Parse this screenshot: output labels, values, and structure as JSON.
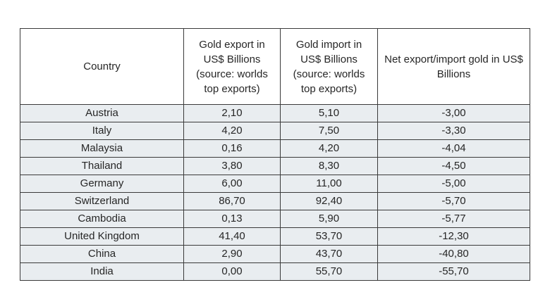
{
  "table": {
    "headers": [
      "Country",
      "Gold export in US$ Billions (source: worlds top exports)",
      "Gold import in US$ Billions (source: worlds top exports)",
      "Net export/import gold in US$ Billions"
    ],
    "rows": [
      {
        "country": "Austria",
        "export": "2,10",
        "import": "5,10",
        "net": "-3,00"
      },
      {
        "country": "Italy",
        "export": "4,20",
        "import": "7,50",
        "net": "-3,30"
      },
      {
        "country": "Malaysia",
        "export": "0,16",
        "import": "4,20",
        "net": "-4,04"
      },
      {
        "country": "Thailand",
        "export": "3,80",
        "import": "8,30",
        "net": "-4,50"
      },
      {
        "country": "Germany",
        "export": "6,00",
        "import": "11,00",
        "net": "-5,00"
      },
      {
        "country": "Switzerland",
        "export": "86,70",
        "import": "92,40",
        "net": "-5,70"
      },
      {
        "country": "Cambodia",
        "export": "0,13",
        "import": "5,90",
        "net": "-5,77"
      },
      {
        "country": "United Kingdom",
        "export": "41,40",
        "import": "53,70",
        "net": "-12,30"
      },
      {
        "country": "China",
        "export": "2,90",
        "import": "43,70",
        "net": "-40,80"
      },
      {
        "country": "India",
        "export": "0,00",
        "import": "55,70",
        "net": "-55,70"
      }
    ]
  },
  "colors": {
    "row_fill": "#e9edf0",
    "border": "#3a3a3a",
    "text": "#262626"
  }
}
